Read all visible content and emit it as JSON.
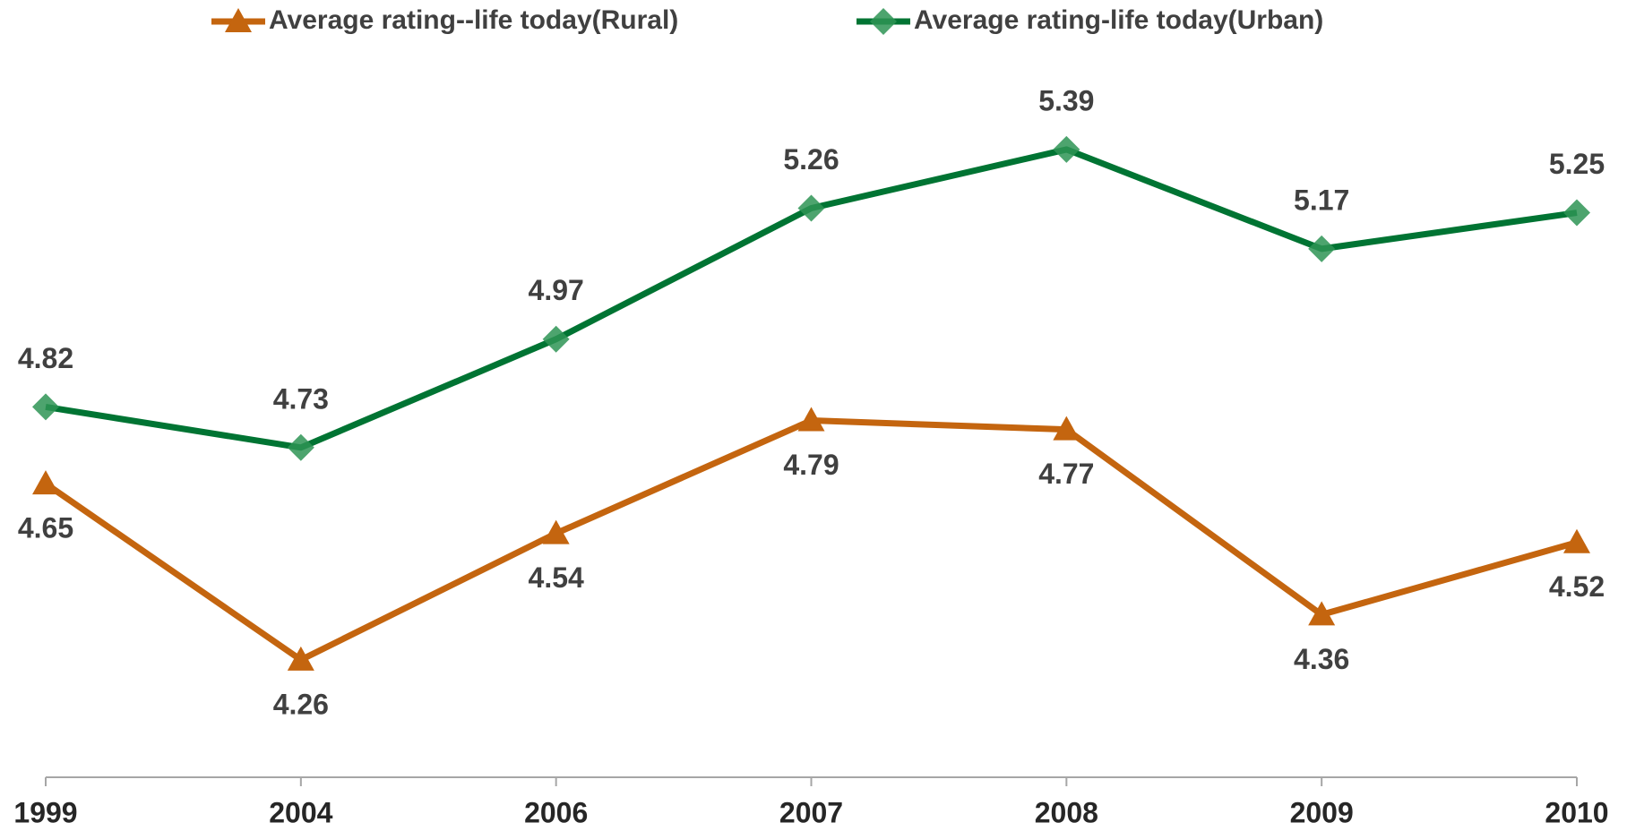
{
  "chart_data": {
    "type": "line",
    "categories": [
      "1999",
      "2004",
      "2006",
      "2007",
      "2008",
      "2009",
      "2010"
    ],
    "series": [
      {
        "name": "Average rating--life today(Rural)",
        "color": "#c4650f",
        "marker": "triangle",
        "values": [
          4.65,
          4.26,
          4.54,
          4.79,
          4.77,
          4.36,
          4.52
        ]
      },
      {
        "name": "Average rating-life today(Urban)",
        "color": "#007433",
        "marker": "diamond",
        "values": [
          4.82,
          4.73,
          4.97,
          5.26,
          5.39,
          5.17,
          5.25
        ]
      }
    ],
    "ylim": [
      4,
      5.6
    ],
    "legend": "top"
  }
}
